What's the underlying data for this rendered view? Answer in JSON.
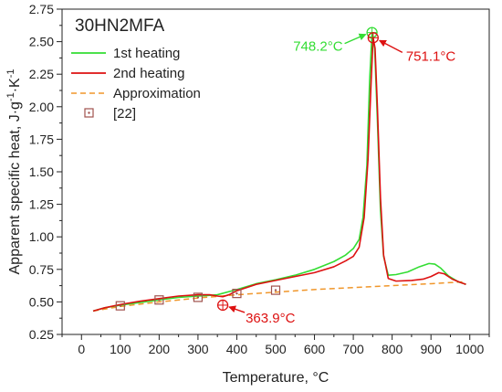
{
  "chart_data": {
    "type": "line",
    "title": "30HN2MFA",
    "xlabel": "Temperature, °C",
    "ylabel_main": "Apparent specific heat, J·g",
    "ylabel_sup1": "-1",
    "ylabel_mid": "·K",
    "ylabel_sup2": "-1",
    "xlim": [
      -50,
      1050
    ],
    "ylim": [
      0.25,
      2.75
    ],
    "x_ticks": [
      0,
      100,
      200,
      300,
      400,
      500,
      600,
      700,
      800,
      900,
      1000
    ],
    "y_ticks": [
      0.25,
      0.5,
      0.75,
      1.0,
      1.25,
      1.5,
      1.75,
      2.0,
      2.25,
      2.5,
      2.75
    ],
    "x_tick_labels": [
      "0",
      "100",
      "200",
      "300",
      "400",
      "500",
      "600",
      "700",
      "800",
      "900",
      "1000"
    ],
    "y_tick_labels": [
      "0.25",
      "0.50",
      "0.75",
      "1.00",
      "1.25",
      "1.50",
      "1.75",
      "2.00",
      "2.25",
      "2.50",
      "2.75"
    ],
    "grid": false,
    "legend_position": "top-left",
    "series": [
      {
        "name": "1st heating",
        "style": "line",
        "color": "#33dd33",
        "points": [
          [
            30,
            0.43
          ],
          [
            60,
            0.455
          ],
          [
            100,
            0.475
          ],
          [
            150,
            0.495
          ],
          [
            200,
            0.515
          ],
          [
            250,
            0.535
          ],
          [
            300,
            0.545
          ],
          [
            320,
            0.548
          ],
          [
            350,
            0.555
          ],
          [
            400,
            0.595
          ],
          [
            450,
            0.64
          ],
          [
            500,
            0.67
          ],
          [
            550,
            0.705
          ],
          [
            600,
            0.75
          ],
          [
            650,
            0.81
          ],
          [
            680,
            0.86
          ],
          [
            700,
            0.91
          ],
          [
            715,
            0.98
          ],
          [
            725,
            1.15
          ],
          [
            735,
            1.55
          ],
          [
            742,
            2.2
          ],
          [
            748.2,
            2.57
          ],
          [
            755,
            2.45
          ],
          [
            762,
            1.9
          ],
          [
            770,
            1.2
          ],
          [
            778,
            0.85
          ],
          [
            790,
            0.705
          ],
          [
            810,
            0.71
          ],
          [
            840,
            0.73
          ],
          [
            870,
            0.77
          ],
          [
            895,
            0.795
          ],
          [
            910,
            0.79
          ],
          [
            925,
            0.76
          ],
          [
            945,
            0.7
          ],
          [
            970,
            0.655
          ],
          [
            990,
            0.635
          ]
        ]
      },
      {
        "name": "2nd heating",
        "style": "line",
        "color": "#dd1111",
        "points": [
          [
            30,
            0.43
          ],
          [
            60,
            0.455
          ],
          [
            100,
            0.48
          ],
          [
            150,
            0.505
          ],
          [
            200,
            0.525
          ],
          [
            250,
            0.545
          ],
          [
            300,
            0.555
          ],
          [
            330,
            0.555
          ],
          [
            350,
            0.545
          ],
          [
            363.9,
            0.54
          ],
          [
            380,
            0.555
          ],
          [
            400,
            0.585
          ],
          [
            450,
            0.635
          ],
          [
            500,
            0.665
          ],
          [
            550,
            0.695
          ],
          [
            600,
            0.725
          ],
          [
            650,
            0.77
          ],
          [
            680,
            0.815
          ],
          [
            700,
            0.85
          ],
          [
            715,
            0.92
          ],
          [
            728,
            1.15
          ],
          [
            738,
            1.6
          ],
          [
            746,
            2.2
          ],
          [
            751.1,
            2.53
          ],
          [
            756,
            2.45
          ],
          [
            762,
            2.0
          ],
          [
            770,
            1.3
          ],
          [
            778,
            0.86
          ],
          [
            790,
            0.68
          ],
          [
            810,
            0.66
          ],
          [
            850,
            0.665
          ],
          [
            880,
            0.675
          ],
          [
            900,
            0.695
          ],
          [
            920,
            0.725
          ],
          [
            935,
            0.715
          ],
          [
            955,
            0.675
          ],
          [
            975,
            0.65
          ],
          [
            990,
            0.635
          ]
        ]
      },
      {
        "name": "Approximation",
        "style": "dashed",
        "color": "#f0962a",
        "points": [
          [
            30,
            0.43
          ],
          [
            100,
            0.465
          ],
          [
            200,
            0.5
          ],
          [
            300,
            0.53
          ],
          [
            400,
            0.555
          ],
          [
            500,
            0.575
          ],
          [
            600,
            0.595
          ],
          [
            700,
            0.61
          ],
          [
            800,
            0.625
          ],
          [
            900,
            0.64
          ],
          [
            990,
            0.655
          ]
        ]
      },
      {
        "name": "[22]",
        "style": "markers",
        "color": "#a0524d",
        "points": [
          [
            100,
            0.47
          ],
          [
            200,
            0.515
          ],
          [
            300,
            0.535
          ],
          [
            400,
            0.565
          ],
          [
            500,
            0.59
          ]
        ]
      }
    ],
    "annotations": [
      {
        "text": "748.2°C",
        "x": 748.2,
        "y": 2.57,
        "color": "#33dd33"
      },
      {
        "text": "751.1°C",
        "x": 751.1,
        "y": 2.53,
        "color": "#dd1111"
      },
      {
        "text": "363.9°C",
        "x": 363.9,
        "y": 0.475,
        "color": "#dd1111"
      }
    ]
  }
}
